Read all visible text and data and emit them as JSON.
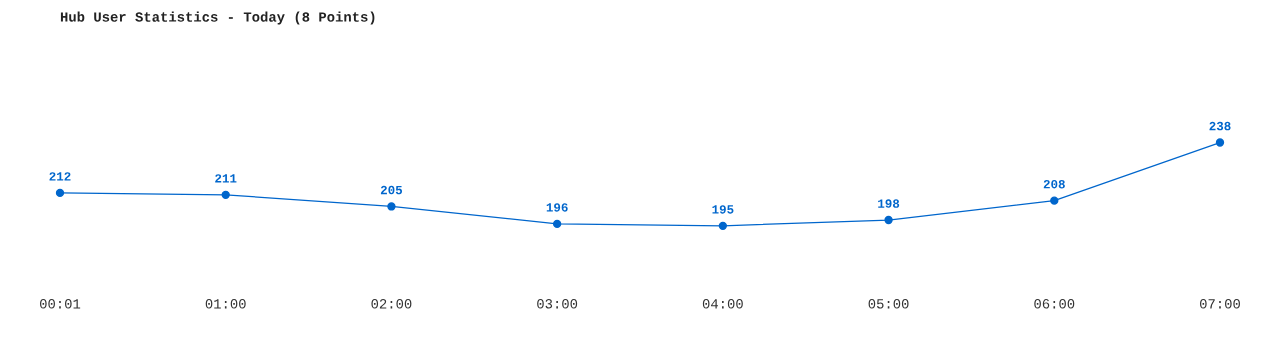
{
  "chart_data": {
    "type": "line",
    "title": "Hub User Statistics - Today (8 Points)",
    "categories": [
      "00:01",
      "01:00",
      "02:00",
      "03:00",
      "04:00",
      "05:00",
      "06:00",
      "07:00"
    ],
    "series": [
      {
        "color": "#0066cc",
        "values": [
          212,
          211,
          205,
          196,
          195,
          198,
          208,
          238
        ]
      }
    ],
    "tick_labels": "x",
    "data_labels": true,
    "marker": "circle",
    "line_style": "solid",
    "grid": false,
    "legend": false
  }
}
